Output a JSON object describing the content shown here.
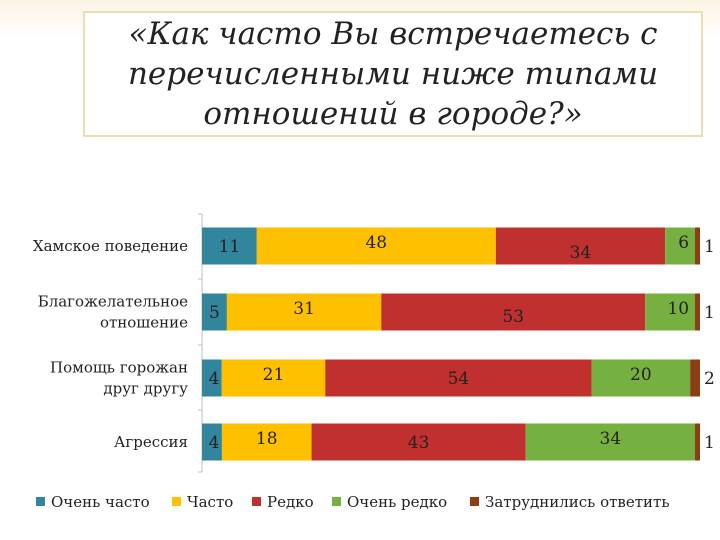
{
  "title": "«Как часто Вы встречаетесь с перечисленными ниже типами отношений в городе?»",
  "chart_data": {
    "type": "bar",
    "orientation": "horizontal",
    "stacked": true,
    "percent": true,
    "categories": [
      [
        "Хамское поведение"
      ],
      [
        "Благожелательное",
        "отношение"
      ],
      [
        "Помощь горожан",
        "друг другу"
      ],
      [
        "Агрессия"
      ]
    ],
    "series": [
      {
        "name": "Очень часто",
        "color": "#31859c",
        "values": [
          11,
          5,
          4,
          4
        ]
      },
      {
        "name": "Часто",
        "color": "#ffc000",
        "values": [
          48,
          31,
          21,
          18
        ]
      },
      {
        "name": "Редко",
        "color": "#c0302f",
        "values": [
          34,
          53,
          54,
          43
        ]
      },
      {
        "name": "Очень редко",
        "color": "#76b041",
        "values": [
          6,
          10,
          20,
          34
        ]
      },
      {
        "name": "Затруднились ответить",
        "color": "#8b3e14",
        "values": [
          1,
          1,
          2,
          1
        ]
      }
    ],
    "xlim": [
      0,
      100
    ],
    "legend": "bottom"
  }
}
